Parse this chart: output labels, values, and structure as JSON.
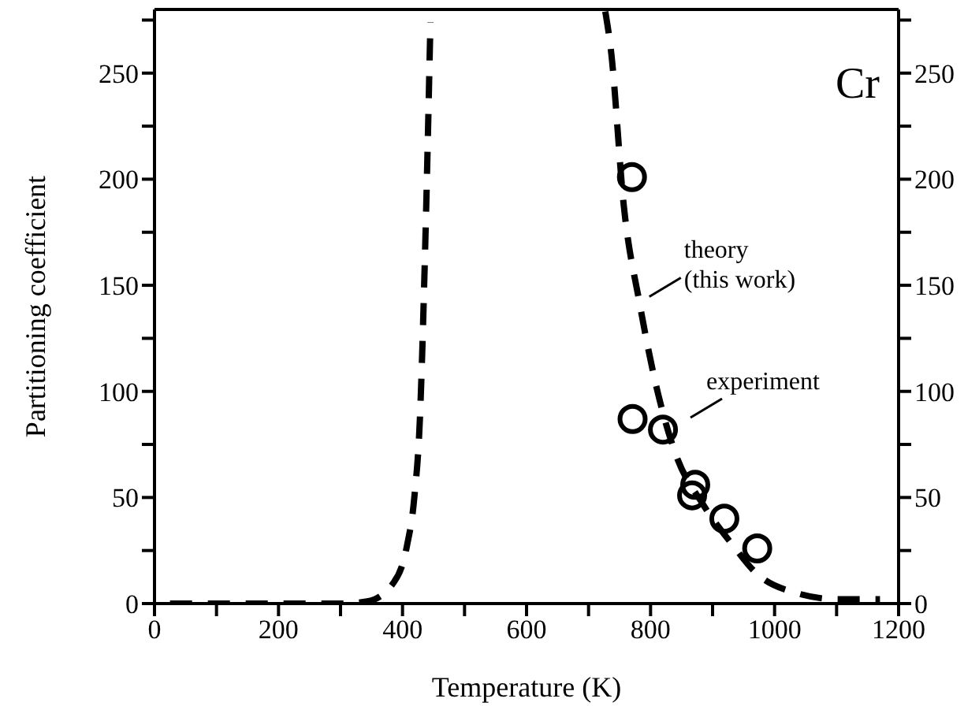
{
  "chart_data": {
    "type": "line",
    "xlabel": "Temperature (K)",
    "ylabel": "Partitioning coefficient",
    "xlim": [
      0,
      1200
    ],
    "xticks": [
      0,
      {
        "value": 100,
        "label": null
      },
      200,
      {
        "value": 300,
        "label": null
      },
      400,
      {
        "value": 500,
        "label": null
      },
      600,
      {
        "value": 700,
        "label": null
      },
      800,
      {
        "value": 900,
        "label": null
      },
      1000,
      {
        "value": 1100,
        "label": null
      },
      1200
    ],
    "ylim": [
      0,
      280
    ],
    "yticks": [
      0,
      {
        "value": 25,
        "label": null
      },
      50,
      {
        "value": 75,
        "label": null
      },
      100,
      {
        "value": 125,
        "label": null
      },
      150,
      {
        "value": 175,
        "label": null
      },
      200,
      {
        "value": 225,
        "label": null
      },
      250,
      {
        "value": 275,
        "label": null
      }
    ],
    "y2lim": [
      0,
      280
    ],
    "y2ticks": [
      0,
      {
        "value": 25,
        "label": null
      },
      50,
      {
        "value": 75,
        "label": null
      },
      100,
      {
        "value": 125,
        "label": null
      },
      150,
      {
        "value": 175,
        "label": null
      },
      200,
      {
        "value": 225,
        "label": null
      },
      250,
      {
        "value": 275,
        "label": null
      }
    ],
    "series": [
      {
        "color": "#000000",
        "line_style": "dashed",
        "marker": "none",
        "x": [
          25,
          100,
          200,
          300,
          343,
          386,
          407,
          419,
          428,
          436,
          445
        ],
        "values": [
          0,
          0,
          0,
          0,
          1,
          10,
          27,
          50,
          87,
          162,
          274
        ]
      },
      {
        "color": "#000000",
        "line_style": "dashed",
        "marker": "none",
        "x": [
          727,
          736,
          757,
          782,
          812,
          841,
          884,
          934,
          968,
          1035,
          1103,
          1170
        ],
        "values": [
          279,
          261,
          187,
          142,
          99,
          70,
          47,
          27,
          15,
          5,
          2,
          2
        ]
      },
      {
        "type": "scatter",
        "color": "#000000",
        "marker": "circle",
        "x": [
          770,
          771,
          820,
          872,
          867,
          919,
          972
        ],
        "values": [
          201,
          87,
          82,
          56,
          51,
          40,
          26
        ]
      }
    ],
    "annotations": [
      "Cr",
      {
        "text": "theory\n(this work)",
        "x": 798,
        "y": 145
      },
      "experiment"
    ]
  }
}
